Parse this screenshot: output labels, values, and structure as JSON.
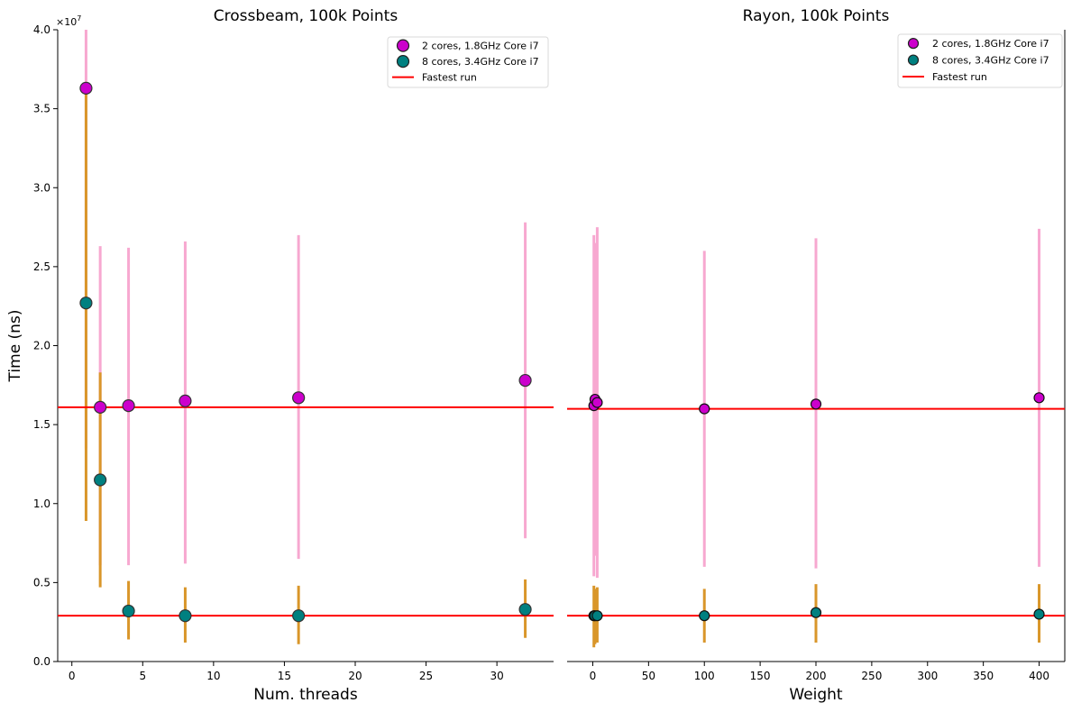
{
  "chart_data": [
    {
      "type": "scatter",
      "title": "Crossbeam, 100k Points",
      "xlabel": "Num. threads",
      "ylabel": "Time (ns)",
      "y_scale_label": "×10",
      "y_scale_exp": "7",
      "xlim": [
        -1,
        34
      ],
      "ylim": [
        0,
        4.0
      ],
      "xticks": [
        0,
        5,
        10,
        15,
        20,
        25,
        30
      ],
      "yticks": [
        0.0,
        0.5,
        1.0,
        1.5,
        2.0,
        2.5,
        3.0,
        3.5,
        4.0
      ],
      "yticklabels": [
        "0.0",
        "0.5",
        "1.0",
        "1.5",
        "2.0",
        "2.5",
        "3.0",
        "3.5",
        "4.0"
      ],
      "legend": "top-right",
      "grid": false,
      "series": [
        {
          "name": "2 cores, 1.8GHz Core i7",
          "marker_color": "#cc00cc",
          "error_color": "#f7a8d0",
          "x": [
            1,
            2,
            4,
            8,
            16,
            32
          ],
          "y": [
            3.63,
            1.61,
            1.62,
            1.65,
            1.67,
            1.78
          ],
          "err_low": [
            1.35,
            0.61,
            0.61,
            0.62,
            0.65,
            0.78
          ],
          "err_high": [
            4.0,
            2.63,
            2.62,
            2.66,
            2.7,
            2.78
          ]
        },
        {
          "name": "8 cores, 3.4GHz Core i7",
          "marker_color": "#008080",
          "error_color": "#d9962a",
          "x": [
            1,
            2,
            4,
            8,
            16,
            32
          ],
          "y": [
            2.27,
            1.15,
            0.32,
            0.29,
            0.29,
            0.33
          ],
          "err_low": [
            0.89,
            0.47,
            0.14,
            0.12,
            0.11,
            0.15
          ],
          "err_high": [
            3.65,
            1.83,
            0.51,
            0.47,
            0.48,
            0.52
          ]
        }
      ],
      "reference_lines": [
        {
          "name": "Fastest run",
          "color": "#ff0000",
          "values": [
            1.61,
            0.29
          ]
        }
      ]
    },
    {
      "type": "scatter",
      "title": "Rayon, 100k Points",
      "xlabel": "Weight",
      "ylabel": "",
      "xlim": [
        -23,
        423
      ],
      "ylim": [
        0,
        4.0
      ],
      "xticks": [
        0,
        50,
        100,
        150,
        200,
        250,
        300,
        350,
        400
      ],
      "legend": "top-right",
      "grid": false,
      "series": [
        {
          "name": "2 cores, 1.8GHz Core i7",
          "marker_color": "#cc00cc",
          "error_color": "#f7a8d0",
          "x": [
            1,
            2,
            4,
            100,
            200,
            400
          ],
          "y": [
            1.62,
            1.66,
            1.64,
            1.6,
            1.63,
            1.67
          ],
          "err_low": [
            0.54,
            0.67,
            0.53,
            0.6,
            0.59,
            0.6
          ],
          "err_high": [
            2.7,
            2.65,
            2.75,
            2.6,
            2.68,
            2.74
          ]
        },
        {
          "name": "8 cores, 3.4GHz Core i7",
          "marker_color": "#008080",
          "error_color": "#d9962a",
          "x": [
            1,
            2,
            4,
            100,
            200,
            400
          ],
          "y": [
            0.29,
            0.29,
            0.29,
            0.29,
            0.31,
            0.3
          ],
          "err_low": [
            0.09,
            0.11,
            0.12,
            0.12,
            0.12,
            0.12
          ],
          "err_high": [
            0.48,
            0.46,
            0.47,
            0.46,
            0.49,
            0.49
          ]
        }
      ],
      "reference_lines": [
        {
          "name": "Fastest run",
          "color": "#ff0000",
          "values": [
            1.6,
            0.29
          ]
        }
      ]
    }
  ]
}
